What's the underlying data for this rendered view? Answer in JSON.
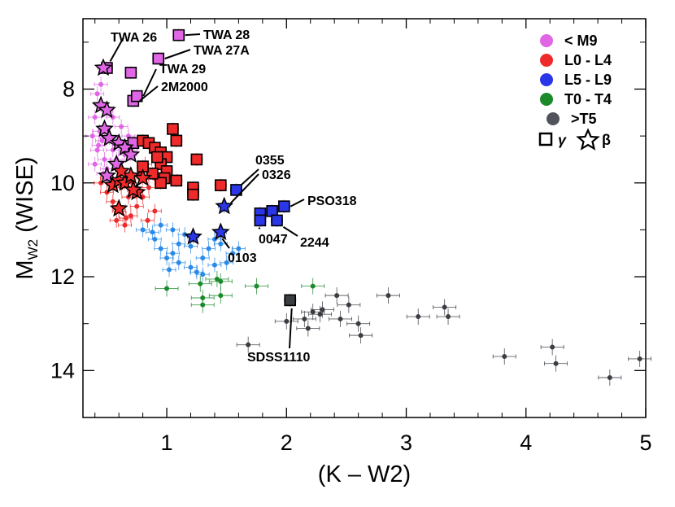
{
  "chart_data": {
    "type": "scatter",
    "title": "",
    "xlabel": "(K – W2)",
    "ylabel_main": "M",
    "ylabel_sub": "W2",
    "ylabel_suffix": " (WISE)",
    "xlim": [
      0.3,
      5.0
    ],
    "ylim": [
      15.0,
      6.5
    ],
    "y_inverted": true,
    "xticks": [
      1,
      2,
      3,
      4,
      5
    ],
    "yticks": [
      8,
      10,
      12,
      14
    ],
    "grid": false,
    "legend_position": "top-right",
    "legend": {
      "entries": [
        {
          "label": "< M9",
          "color": "#e066e6"
        },
        {
          "label": "L0 - L4",
          "color": "#ee2a2a"
        },
        {
          "label": "L5 - L9",
          "color": "#2a36e8"
        },
        {
          "label": "T0 - T4",
          "color": "#1a8a2a"
        },
        {
          "label": ">T5",
          "color": "#50545a"
        }
      ],
      "gamma_label": "γ",
      "beta_label": "β"
    },
    "series": [
      {
        "group": "M-field",
        "color": "#e066e6",
        "marker": "dot",
        "points": [
          [
            0.42,
            8.1
          ],
          [
            0.45,
            8.3
          ],
          [
            0.4,
            8.6
          ],
          [
            0.44,
            8.9
          ],
          [
            0.46,
            9.1
          ],
          [
            0.42,
            9.3
          ],
          [
            0.48,
            9.5
          ],
          [
            0.5,
            9.7
          ],
          [
            0.55,
            9.3
          ],
          [
            0.52,
            9.0
          ],
          [
            0.6,
            9.2
          ],
          [
            0.58,
            9.5
          ],
          [
            0.65,
            9.4
          ],
          [
            0.7,
            9.3
          ],
          [
            0.68,
            9.0
          ],
          [
            0.5,
            8.4
          ],
          [
            0.45,
            7.9
          ],
          [
            0.38,
            9.0
          ],
          [
            0.4,
            9.6
          ],
          [
            0.62,
            8.8
          ],
          [
            0.55,
            8.6
          ],
          [
            0.47,
            9.8
          ],
          [
            0.43,
            9.2
          ],
          [
            0.5,
            9.05
          ]
        ]
      },
      {
        "group": "L-early-field",
        "color": "#ee2a2a",
        "marker": "dot",
        "points": [
          [
            0.45,
            10.0
          ],
          [
            0.5,
            10.2
          ],
          [
            0.55,
            10.4
          ],
          [
            0.6,
            10.6
          ],
          [
            0.58,
            10.8
          ],
          [
            0.65,
            10.9
          ],
          [
            0.7,
            10.7
          ],
          [
            0.75,
            10.5
          ],
          [
            0.8,
            10.3
          ],
          [
            0.85,
            10.1
          ],
          [
            0.9,
            9.9
          ],
          [
            0.72,
            10.0
          ],
          [
            0.62,
            10.1
          ],
          [
            0.68,
            10.3
          ],
          [
            0.55,
            10.0
          ],
          [
            0.78,
            9.8
          ],
          [
            0.82,
            9.6
          ],
          [
            0.5,
            9.9
          ],
          [
            0.6,
            10.5
          ],
          [
            0.9,
            10.6
          ],
          [
            0.66,
            10.75
          ],
          [
            0.84,
            10.8
          ]
        ]
      },
      {
        "group": "L-late-field",
        "color": "#2a8ae8",
        "marker": "dot",
        "points": [
          [
            0.8,
            11.0
          ],
          [
            0.9,
            11.2
          ],
          [
            0.95,
            11.4
          ],
          [
            1.0,
            11.6
          ],
          [
            1.05,
            11.5
          ],
          [
            1.1,
            11.3
          ],
          [
            1.15,
            11.1
          ],
          [
            1.2,
            11.8
          ],
          [
            1.25,
            11.9
          ],
          [
            1.3,
            11.6
          ],
          [
            1.35,
            11.4
          ],
          [
            1.4,
            11.2
          ],
          [
            1.45,
            11.3
          ],
          [
            1.5,
            11.7
          ],
          [
            1.55,
            11.5
          ],
          [
            1.6,
            11.4
          ],
          [
            1.05,
            11.0
          ],
          [
            0.95,
            10.9
          ],
          [
            1.1,
            11.7
          ],
          [
            1.3,
            11.95
          ],
          [
            1.4,
            11.75
          ],
          [
            1.2,
            11.35
          ],
          [
            0.88,
            11.05
          ],
          [
            1.02,
            11.85
          ]
        ]
      },
      {
        "group": "T-early-field",
        "color": "#1a8a2a",
        "marker": "dot",
        "points": [
          [
            1.0,
            12.25
          ],
          [
            1.28,
            12.15
          ],
          [
            1.3,
            12.6
          ],
          [
            1.3,
            12.45
          ],
          [
            1.45,
            12.1
          ],
          [
            1.45,
            12.4
          ],
          [
            1.42,
            12.05
          ],
          [
            1.75,
            12.2
          ],
          [
            2.22,
            12.2
          ]
        ]
      },
      {
        "group": "T-late-field",
        "color": "#3a3d42",
        "marker": "dot",
        "points": [
          [
            1.68,
            13.45
          ],
          [
            2.0,
            12.95
          ],
          [
            2.15,
            12.9
          ],
          [
            2.18,
            13.1
          ],
          [
            2.22,
            12.75
          ],
          [
            2.28,
            12.8
          ],
          [
            2.3,
            12.7
          ],
          [
            2.42,
            12.4
          ],
          [
            2.45,
            12.9
          ],
          [
            2.52,
            12.6
          ],
          [
            2.6,
            13.0
          ],
          [
            2.62,
            13.25
          ],
          [
            2.85,
            12.4
          ],
          [
            3.1,
            12.85
          ],
          [
            3.32,
            12.65
          ],
          [
            3.35,
            12.85
          ],
          [
            3.82,
            13.7
          ],
          [
            4.22,
            13.5
          ],
          [
            4.25,
            13.85
          ],
          [
            4.7,
            14.15
          ],
          [
            4.95,
            13.75
          ]
        ]
      },
      {
        "group": "young-M-gamma",
        "color": "#e066e6",
        "marker": "square",
        "points": [
          [
            0.5,
            7.55
          ],
          [
            0.7,
            7.65
          ],
          [
            0.72,
            8.25
          ],
          [
            0.75,
            8.15
          ],
          [
            0.72,
            9.15
          ],
          [
            1.1,
            6.85
          ],
          [
            0.93,
            7.35
          ]
        ]
      },
      {
        "group": "young-L-early-gamma",
        "color": "#ee2a2a",
        "marker": "square",
        "points": [
          [
            0.8,
            9.1
          ],
          [
            0.85,
            9.15
          ],
          [
            0.9,
            9.25
          ],
          [
            0.95,
            9.35
          ],
          [
            1.0,
            9.45
          ],
          [
            0.95,
            9.6
          ],
          [
            1.0,
            9.75
          ],
          [
            0.98,
            9.9
          ],
          [
            1.05,
            8.85
          ],
          [
            1.08,
            9.1
          ],
          [
            1.25,
            9.5
          ],
          [
            0.95,
            10.0
          ],
          [
            1.08,
            9.95
          ],
          [
            1.22,
            10.1
          ],
          [
            1.22,
            10.25
          ],
          [
            1.45,
            10.05
          ],
          [
            0.88,
            9.8
          ],
          [
            0.92,
            9.45
          ],
          [
            0.8,
            9.65
          ]
        ]
      },
      {
        "group": "young-L-late-gamma",
        "color": "#2a36e8",
        "marker": "square",
        "points": [
          [
            1.58,
            10.15
          ],
          [
            1.78,
            10.65
          ],
          [
            1.78,
            10.8
          ],
          [
            1.88,
            10.6
          ],
          [
            1.92,
            10.8
          ],
          [
            1.98,
            10.5
          ]
        ]
      },
      {
        "group": "young-T-late-gamma",
        "color": "#3a3d42",
        "marker": "square",
        "points": [
          [
            2.03,
            12.5
          ]
        ]
      },
      {
        "group": "young-M-beta",
        "color": "#e066e6",
        "marker": "star",
        "points": [
          [
            0.47,
            7.55
          ],
          [
            0.45,
            8.35
          ],
          [
            0.5,
            8.45
          ],
          [
            0.48,
            8.85
          ],
          [
            0.52,
            9.05
          ],
          [
            0.6,
            9.15
          ],
          [
            0.65,
            9.25
          ],
          [
            0.7,
            9.4
          ],
          [
            0.58,
            9.6
          ],
          [
            0.5,
            9.85
          ]
        ]
      },
      {
        "group": "young-L-early-beta",
        "color": "#ee2a2a",
        "marker": "star",
        "points": [
          [
            0.55,
            10.05
          ],
          [
            0.6,
            9.95
          ],
          [
            0.65,
            10.0
          ],
          [
            0.7,
            9.85
          ],
          [
            0.75,
            10.2
          ],
          [
            0.8,
            9.9
          ],
          [
            0.6,
            10.55
          ],
          [
            0.62,
            9.75
          ],
          [
            0.72,
            10.15
          ]
        ]
      },
      {
        "group": "young-L-late-beta",
        "color": "#2a36e8",
        "marker": "star",
        "points": [
          [
            1.22,
            11.15
          ],
          [
            1.45,
            11.05
          ],
          [
            1.48,
            10.5
          ]
        ]
      }
    ],
    "annotations": [
      {
        "text": "TWA 26",
        "x": 0.5,
        "y": 7.55
      },
      {
        "text": "TWA 28",
        "x": 1.1,
        "y": 6.85
      },
      {
        "text": "TWA 27A",
        "x": 0.93,
        "y": 7.35
      },
      {
        "text": "TWA 29",
        "x": 0.75,
        "y": 8.15
      },
      {
        "text": "2M2000",
        "x": 0.72,
        "y": 8.25
      },
      {
        "text": "0355",
        "x": 1.58,
        "y": 10.15
      },
      {
        "text": "0326",
        "x": 1.48,
        "y": 10.5
      },
      {
        "text": "PSO318",
        "x": 1.98,
        "y": 10.5
      },
      {
        "text": "0047",
        "x": 1.78,
        "y": 10.8
      },
      {
        "text": "2244",
        "x": 1.92,
        "y": 10.8
      },
      {
        "text": "0103",
        "x": 1.45,
        "y": 11.05
      },
      {
        "text": "SDSS1110",
        "x": 2.03,
        "y": 12.5
      }
    ]
  }
}
